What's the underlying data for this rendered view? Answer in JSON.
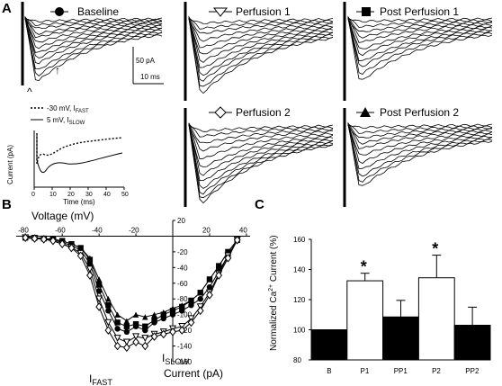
{
  "panels": {
    "A": "A",
    "B": "B",
    "C": "C"
  },
  "traces": {
    "baseline": "Baseline",
    "perfusion1": "Perfusion 1",
    "post_perfusion1": "Post Perfusion 1",
    "perfusion2": "Perfusion 2",
    "post_perfusion2": "Post Perfusion 2",
    "scale_current": "50 pA",
    "scale_time": "10 ms",
    "caret": "^",
    "arrow": "↑"
  },
  "inset": {
    "legend_fast_prefix": "-30 mV, I",
    "legend_fast_sub": "FAST",
    "legend_slow_prefix": "5 mV, I",
    "legend_slow_sub": "SLOW",
    "ylabel": "Current (pA)",
    "xlabel": "Time (ms)",
    "xticks": [
      "0",
      "10",
      "20",
      "30",
      "40",
      "50"
    ]
  },
  "chart_data": [
    {
      "type": "line",
      "panel": "B",
      "xlabel": "Voltage (mV)",
      "ylabel": "Current (pA)",
      "xlim": [
        -85,
        42
      ],
      "ylim": [
        -160,
        20
      ],
      "xticks": [
        "-80",
        "-60",
        "-40",
        "-20",
        "20",
        "40"
      ],
      "yticks": [
        "20",
        "-20",
        "-40",
        "-60",
        "-80",
        "-100",
        "-120",
        "-140",
        "-160"
      ],
      "annotations": {
        "fast_prefix": "I",
        "fast_sub": "FAST",
        "slow_prefix": "I",
        "slow_sub": "SLOW"
      },
      "x": [
        -80,
        -75,
        -70,
        -65,
        -60,
        -55,
        -50,
        -45,
        -40,
        -35,
        -30,
        -25,
        -20,
        -15,
        -10,
        -5,
        0,
        5,
        10,
        15,
        20,
        25,
        30,
        35
      ],
      "series": [
        {
          "marker": "circle-filled",
          "values": [
            -2,
            -3,
            -3,
            -5,
            -8,
            -12,
            -18,
            -35,
            -70,
            -95,
            -118,
            -122,
            -115,
            -120,
            -110,
            -105,
            -100,
            -95,
            -88,
            -80,
            -65,
            -45,
            -25,
            -5
          ]
        },
        {
          "marker": "square-filled",
          "values": [
            -2,
            -2,
            -3,
            -4,
            -6,
            -10,
            -15,
            -30,
            -62,
            -88,
            -110,
            -115,
            -112,
            -115,
            -107,
            -100,
            -95,
            -90,
            -82,
            -72,
            -55,
            -38,
            -20,
            -5
          ]
        },
        {
          "marker": "triangle-filled",
          "values": [
            -1,
            -2,
            -3,
            -4,
            -6,
            -10,
            -15,
            -28,
            -55,
            -80,
            -100,
            -108,
            -100,
            -103,
            -100,
            -97,
            -92,
            -88,
            -82,
            -72,
            -55,
            -38,
            -20,
            -5
          ]
        },
        {
          "marker": "triangle-open",
          "values": [
            -2,
            -3,
            -4,
            -6,
            -10,
            -14,
            -22,
            -42,
            -80,
            -110,
            -130,
            -135,
            -128,
            -130,
            -125,
            -122,
            -118,
            -115,
            -105,
            -90,
            -72,
            -48,
            -25,
            -5
          ]
        },
        {
          "marker": "diamond-open",
          "values": [
            -2,
            -3,
            -4,
            -6,
            -10,
            -15,
            -25,
            -50,
            -90,
            -120,
            -140,
            -142,
            -135,
            -140,
            -128,
            -125,
            -122,
            -120,
            -110,
            -95,
            -75,
            -50,
            -28,
            -5
          ]
        }
      ]
    },
    {
      "type": "bar",
      "panel": "C",
      "ylabel": "Normalized Ca2+ Current (%)",
      "ylabel_main": "Normalized Ca",
      "ylabel_sup": "2+",
      "ylabel_tail": " Current (%)",
      "categories": [
        "B",
        "P1",
        "PP1",
        "P2",
        "PP2"
      ],
      "values": [
        100,
        132.5,
        108.5,
        134.5,
        103
      ],
      "errors": [
        0,
        5,
        11,
        15,
        12
      ],
      "fills": [
        "#000000",
        "#ffffff",
        "#000000",
        "#ffffff",
        "#000000"
      ],
      "significance": [
        "",
        "*",
        "",
        "*",
        ""
      ],
      "ylim": [
        80,
        160
      ],
      "yticks": [
        "80",
        "100",
        "120",
        "140",
        "160"
      ]
    }
  ]
}
